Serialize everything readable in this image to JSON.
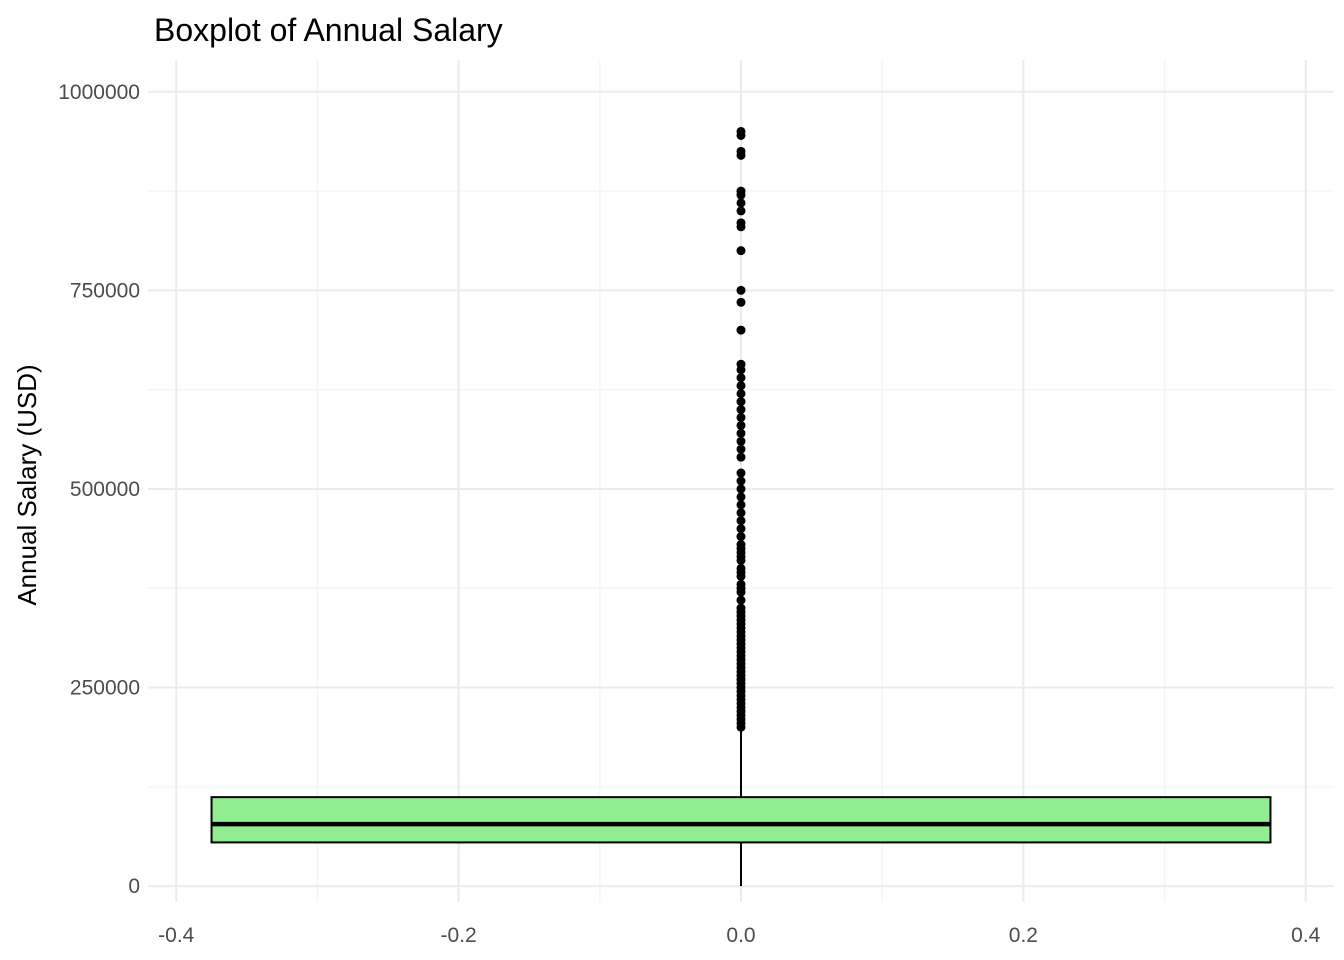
{
  "chart_data": {
    "type": "boxplot",
    "title": "Boxplot of Annual Salary",
    "xlabel": "",
    "ylabel": "Annual Salary (USD)",
    "xlim": [
      -0.42,
      0.42
    ],
    "ylim": [
      -20000,
      1040000
    ],
    "x_ticks": [
      -0.4,
      -0.2,
      0.0,
      0.2,
      0.4
    ],
    "x_tick_labels": [
      "-0.4",
      "-0.2",
      "0.0",
      "0.2",
      "0.4"
    ],
    "y_ticks": [
      0,
      250000,
      500000,
      750000,
      1000000
    ],
    "y_tick_labels": [
      "0",
      "250000",
      "500000",
      "750000",
      "1000000"
    ],
    "grid": true,
    "box": {
      "x_center": 0.0,
      "x_left": -0.375,
      "x_right": 0.375,
      "whisker_low": 0,
      "q1": 55000,
      "median": 78000,
      "q3": 112000,
      "whisker_high": 198000,
      "fill": "#90ee90",
      "stroke": "#000000"
    },
    "outliers": [
      950000,
      945000,
      925000,
      920000,
      875000,
      870000,
      860000,
      850000,
      835000,
      830000,
      800000,
      750000,
      735000,
      700000,
      657000,
      650000,
      640000,
      630000,
      620000,
      610000,
      600000,
      590000,
      580000,
      570000,
      560000,
      550000,
      540000,
      520000,
      510000,
      500000,
      490000,
      480000,
      470000,
      460000,
      450000,
      440000,
      430000,
      425000,
      420000,
      415000,
      410000,
      400000,
      395000,
      390000,
      380000,
      375000,
      370000,
      360000,
      350000,
      345000,
      340000,
      335000,
      330000,
      325000,
      320000,
      315000,
      310000,
      305000,
      300000,
      295000,
      290000,
      285000,
      280000,
      275000,
      270000,
      265000,
      260000,
      255000,
      250000,
      245000,
      240000,
      235000,
      230000,
      225000,
      220000,
      215000,
      210000,
      205000,
      200000
    ]
  }
}
